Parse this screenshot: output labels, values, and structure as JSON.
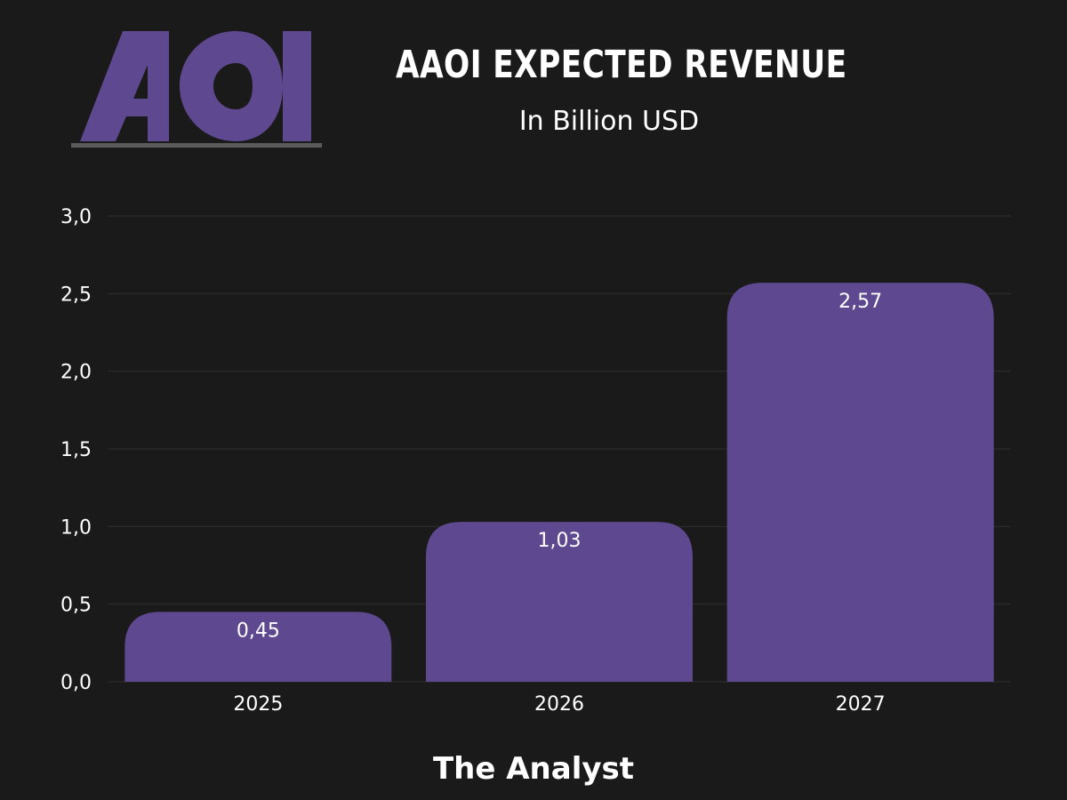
{
  "brand": {
    "logo_text": "AOI",
    "logo_color": "#5e4890",
    "underline_color": "#5b5b5b"
  },
  "header": {
    "title": "AAOI EXPECTED REVENUE",
    "subtitle": "In Billion USD"
  },
  "footer": {
    "credit": "The Analyst"
  },
  "colors": {
    "background": "#1a1a1a",
    "bar": "#5e4890",
    "gridline": "#2f2f2f",
    "text": "#ffffff"
  },
  "chart_data": {
    "type": "bar",
    "title": "AAOI EXPECTED REVENUE",
    "subtitle": "In Billion USD",
    "categories": [
      "2025",
      "2026",
      "2027"
    ],
    "values": [
      0.45,
      1.03,
      2.57
    ],
    "value_labels": [
      "0,45",
      "1,03",
      "2,57"
    ],
    "ylim": [
      0,
      3.0
    ],
    "yticks": [
      "0,0",
      "0,5",
      "1,0",
      "1,5",
      "2,0",
      "2,5",
      "3,0"
    ],
    "ytick_values": [
      0,
      0.5,
      1.0,
      1.5,
      2.0,
      2.5,
      3.0
    ],
    "grid": true,
    "legend": "none"
  }
}
